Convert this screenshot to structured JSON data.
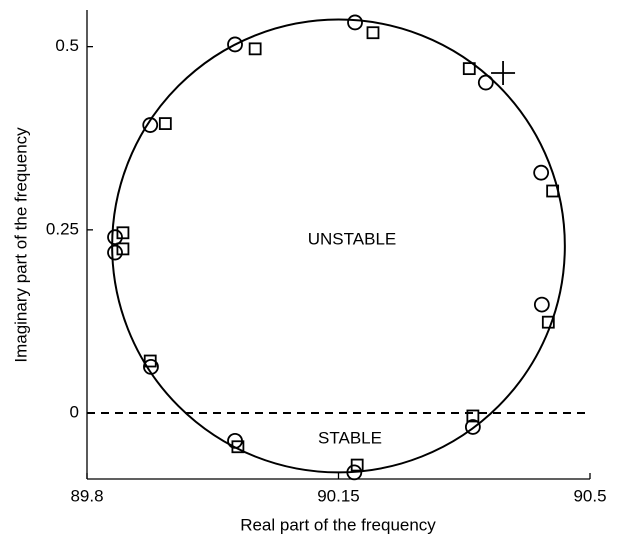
{
  "chart_data": {
    "type": "scatter",
    "xlabel": "Real part of the frequency",
    "ylabel": "Imaginary part of the frequency",
    "xlim": [
      89.8,
      90.5
    ],
    "xticks": [
      89.8,
      90.15,
      90.5
    ],
    "ylim": [
      -0.09,
      0.55
    ],
    "yticks": [
      0,
      0.25,
      0.5
    ],
    "annotations": [
      "UNSTABLE",
      "STABLE"
    ],
    "reference_line_y": 0,
    "reference_circle": {
      "center_x": 90.15,
      "center_y": 0.228,
      "radius_x": 0.315,
      "radius_y": 0.309
    },
    "series": [
      {
        "marker": "circle",
        "color": "#000000",
        "x": [
          90.173,
          90.006,
          89.888,
          89.839,
          89.839,
          89.889,
          90.006,
          90.172,
          90.337,
          90.433,
          90.432,
          90.355
        ],
        "values": [
          0.533,
          0.503,
          0.393,
          0.24,
          0.219,
          0.063,
          -0.038,
          -0.081,
          -0.019,
          0.148,
          0.328,
          0.451
        ]
      },
      {
        "marker": "square",
        "color": "#000000",
        "x": [
          90.198,
          90.034,
          89.909,
          89.85,
          89.85,
          89.888,
          90.01,
          90.176,
          90.337,
          90.442,
          90.448,
          90.332
        ],
        "values": [
          0.519,
          0.497,
          0.395,
          0.246,
          0.224,
          0.071,
          -0.046,
          -0.071,
          -0.004,
          0.124,
          0.303,
          0.47
        ]
      },
      {
        "marker": "plus",
        "color": "#000000",
        "x": [
          90.379
        ],
        "values": [
          0.464
        ]
      }
    ]
  }
}
